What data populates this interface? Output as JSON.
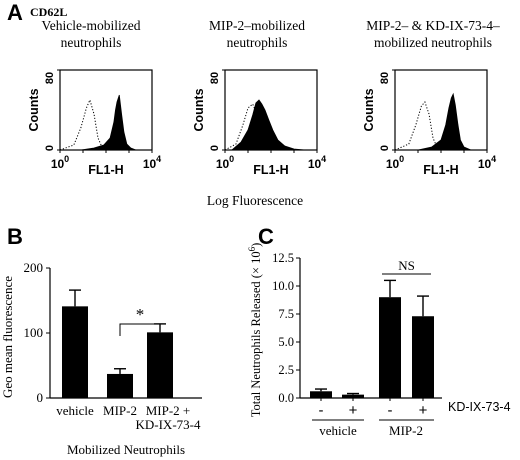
{
  "panel_a": {
    "letter": "A",
    "marker": "CD62L",
    "xlabel": "Log Fluorescence",
    "histograms": [
      {
        "title_lines": [
          "Vehicle-mobilized",
          "neutrophils"
        ],
        "ylabel": "Counts",
        "xlabel": "FL1-H",
        "y_ticks": [
          "0",
          "80"
        ],
        "x_tick_base": "10",
        "x_tick_min_exp": "0",
        "x_tick_max_exp": "4"
      },
      {
        "title_lines": [
          "MIP-2–mobilized",
          "neutrophils"
        ],
        "ylabel": "Counts",
        "xlabel": "FL1-H",
        "y_ticks": [
          "0",
          "80"
        ],
        "x_tick_base": "10",
        "x_tick_min_exp": "0",
        "x_tick_max_exp": "4"
      },
      {
        "title_lines": [
          "MIP-2– & KD-IX-73-4–",
          "mobilized neutrophils"
        ],
        "ylabel": "Counts",
        "xlabel": "FL1-H",
        "y_ticks": [
          "0",
          "80"
        ],
        "x_tick_base": "10",
        "x_tick_min_exp": "0",
        "x_tick_max_exp": "4"
      }
    ]
  },
  "panel_b": {
    "letter": "B"
  },
  "panel_c": {
    "letter": "C"
  },
  "chart_data": [
    {
      "type": "area",
      "panel": "A1",
      "title": "Vehicle-mobilized neutrophils",
      "xlabel": "FL1-H",
      "ylabel": "Counts",
      "x_scale": "log",
      "xlim": [
        1,
        10000
      ],
      "ylim": [
        0,
        80
      ],
      "series": [
        {
          "style": "dotted outline",
          "x": [
            1,
            4,
            8,
            14,
            20,
            30,
            45,
            70,
            110
          ],
          "y": [
            0,
            5,
            22,
            42,
            50,
            36,
            12,
            2,
            0
          ]
        },
        {
          "style": "filled",
          "x": [
            8,
            30,
            80,
            150,
            220,
            260,
            300,
            380,
            480,
            600,
            800,
            1200,
            2000
          ],
          "y": [
            0,
            2,
            5,
            12,
            28,
            40,
            48,
            55,
            35,
            18,
            6,
            2,
            0
          ]
        }
      ]
    },
    {
      "type": "area",
      "panel": "A2",
      "title": "MIP-2–mobilized neutrophils",
      "xlabel": "FL1-H",
      "ylabel": "Counts",
      "x_scale": "log",
      "xlim": [
        1,
        10000
      ],
      "ylim": [
        0,
        80
      ],
      "series": [
        {
          "style": "dotted outline",
          "x": [
            1,
            3,
            6,
            10,
            16,
            22,
            30,
            45,
            70,
            110
          ],
          "y": [
            0,
            6,
            25,
            42,
            46,
            38,
            22,
            8,
            2,
            0
          ]
        },
        {
          "style": "filled",
          "x": [
            2,
            5,
            10,
            16,
            22,
            30,
            40,
            55,
            80,
            120,
            200,
            400,
            1000,
            3000
          ],
          "y": [
            0,
            8,
            20,
            35,
            47,
            50,
            46,
            40,
            30,
            20,
            10,
            4,
            1,
            0
          ]
        }
      ]
    },
    {
      "type": "area",
      "panel": "A3",
      "title": "MIP-2– & KD-IX-73-4– mobilized neutrophils",
      "xlabel": "FL1-H",
      "ylabel": "Counts",
      "x_scale": "log",
      "xlim": [
        1,
        10000
      ],
      "ylim": [
        0,
        80
      ],
      "series": [
        {
          "style": "dotted outline",
          "x": [
            1,
            4,
            8,
            14,
            20,
            30,
            45,
            70,
            110
          ],
          "y": [
            0,
            6,
            25,
            44,
            48,
            36,
            12,
            2,
            0
          ]
        },
        {
          "style": "filled",
          "x": [
            10,
            40,
            100,
            160,
            220,
            280,
            340,
            420,
            550,
            700,
            1000,
            2000
          ],
          "y": [
            0,
            3,
            10,
            25,
            42,
            52,
            56,
            45,
            25,
            10,
            3,
            0
          ]
        }
      ]
    },
    {
      "type": "bar",
      "panel": "B",
      "title": "",
      "xlabel": "Mobilized Neutrophils",
      "ylabel": "Geo mean fluorescence",
      "ylim": [
        0,
        200
      ],
      "y_ticks": [
        0,
        100,
        200
      ],
      "categories": [
        [
          "vehicle"
        ],
        [
          "MIP-2"
        ],
        [
          "MIP-2 +",
          "KD-IX-73-4"
        ]
      ],
      "values": [
        141,
        37,
        101
      ],
      "errors": [
        25,
        8,
        13
      ],
      "significance": {
        "between": [
          1,
          2
        ],
        "label": "*"
      }
    },
    {
      "type": "bar",
      "panel": "C",
      "title": "",
      "ylabel": "Total Neutrophils Released (× 10",
      "ylabel_sup": "6",
      "ylabel_end": ")",
      "ylim": [
        0,
        12.5
      ],
      "y_ticks": [
        "0.0",
        "2.5",
        "5.0",
        "7.5",
        "10.0",
        "12.5"
      ],
      "categories": [
        "-",
        "+",
        "-",
        "+"
      ],
      "group_labels": [
        "vehicle",
        "MIP-2"
      ],
      "row_label": "KD-IX-73-4",
      "values": [
        0.6,
        0.3,
        9.0,
        7.3
      ],
      "errors": [
        0.2,
        0.1,
        1.5,
        1.8
      ],
      "significance": {
        "between": [
          2,
          3
        ],
        "label": "NS"
      }
    }
  ]
}
